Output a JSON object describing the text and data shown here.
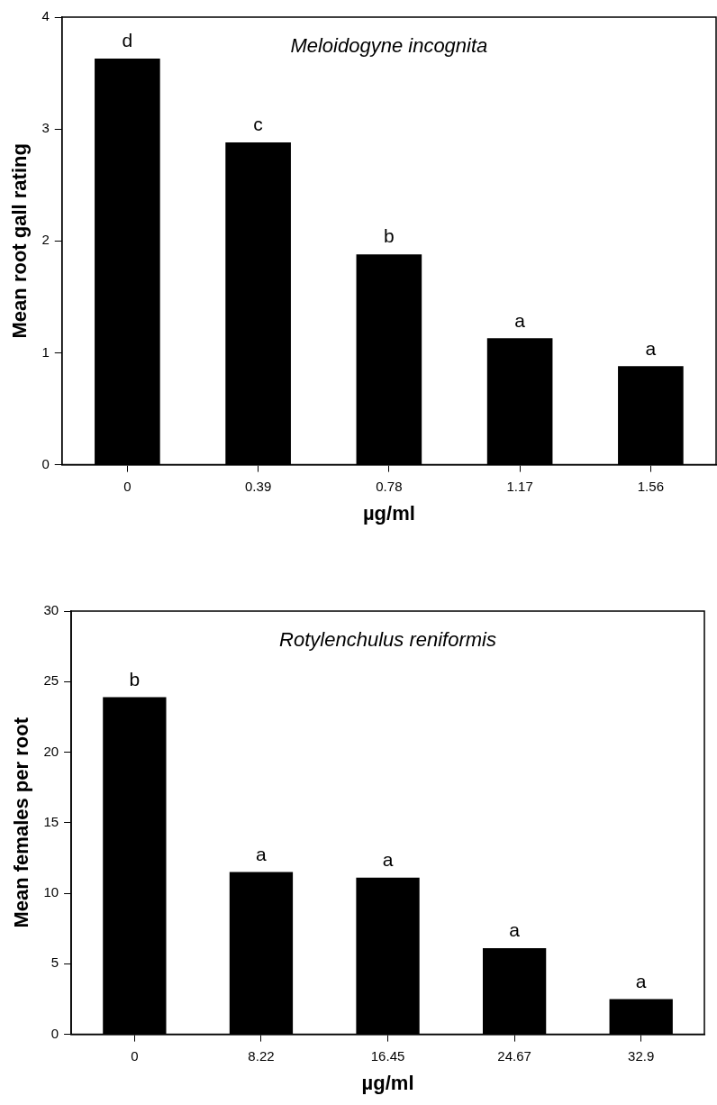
{
  "chart_data": [
    {
      "type": "bar",
      "title": "Meloidogyne incognita",
      "xlabel": "µg/ml",
      "ylabel": "Mean root gall rating",
      "categories": [
        "0",
        "0.39",
        "0.78",
        "1.17",
        "1.56"
      ],
      "values": [
        3.63,
        2.88,
        1.88,
        1.13,
        0.88
      ],
      "color": "#000000",
      "ylim": [
        0,
        4
      ],
      "yticks": [
        0,
        1,
        2,
        3,
        4
      ],
      "grid": false,
      "legend": false,
      "annotations": [
        {
          "text": "d",
          "x": "0",
          "y": 3.63
        },
        {
          "text": "c",
          "x": "0.39",
          "y": 2.88
        },
        {
          "text": "b",
          "x": "0.78",
          "y": 1.88
        },
        {
          "text": "a",
          "x": "1.17",
          "y": 1.13
        },
        {
          "text": "a",
          "x": "1.56",
          "y": 0.88
        }
      ]
    },
    {
      "type": "bar",
      "title": "Rotylenchulus reniformis",
      "xlabel": "µg/ml",
      "ylabel": "Mean females per root",
      "categories": [
        "0",
        "8.22",
        "16.45",
        "24.67",
        "32.9"
      ],
      "values": [
        23.9,
        11.5,
        11.1,
        6.1,
        2.5
      ],
      "color": "#000000",
      "ylim": [
        0,
        30
      ],
      "yticks": [
        0,
        5,
        10,
        15,
        20,
        25,
        30
      ],
      "grid": false,
      "legend": false,
      "annotations": [
        {
          "text": "b",
          "x": "0",
          "y": 23.9
        },
        {
          "text": "a",
          "x": "8.22",
          "y": 11.5
        },
        {
          "text": "a",
          "x": "16.45",
          "y": 11.1
        },
        {
          "text": "a",
          "x": "24.67",
          "y": 6.1
        },
        {
          "text": "a",
          "x": "32.9",
          "y": 2.5
        }
      ]
    }
  ]
}
